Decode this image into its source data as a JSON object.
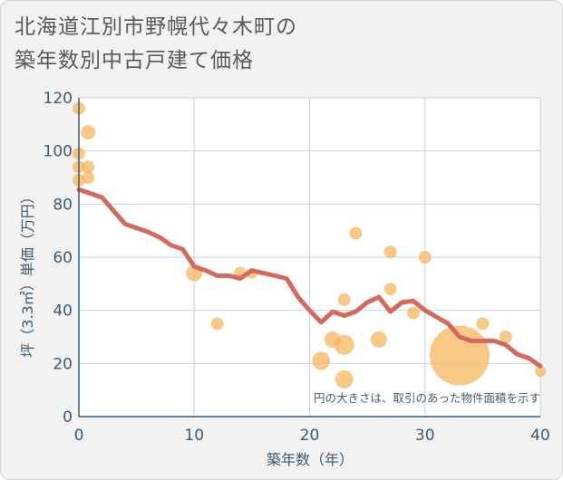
{
  "title_lines": [
    "北海道江別市野幌代々木町の",
    "築年数別中古戸建て価格"
  ],
  "chart_data": {
    "type": "scatter",
    "xlabel": "築年数（年）",
    "ylabel": "坪（3.3㎡）単価（万円）",
    "xlim": [
      0,
      40
    ],
    "ylim": [
      0,
      120
    ],
    "xticks": [
      0,
      10,
      20,
      30,
      40
    ],
    "yticks": [
      0,
      20,
      40,
      60,
      80,
      100,
      120
    ],
    "grid": true,
    "annotation": "円の大きさは、取引のあった物件面積を示す",
    "colors": {
      "bubble": "#f5b55f",
      "line": "#d36a5b",
      "grid": "#c5d2e0",
      "axis": "#3d5a72"
    },
    "bubbles": [
      {
        "x": 0,
        "y": 116,
        "r": 7
      },
      {
        "x": 0,
        "y": 99,
        "r": 7
      },
      {
        "x": 0,
        "y": 94,
        "r": 7
      },
      {
        "x": 0,
        "y": 89,
        "r": 7
      },
      {
        "x": 0.8,
        "y": 107,
        "r": 8
      },
      {
        "x": 0.8,
        "y": 94,
        "r": 7
      },
      {
        "x": 0.8,
        "y": 90,
        "r": 7
      },
      {
        "x": 10,
        "y": 54,
        "r": 9
      },
      {
        "x": 12,
        "y": 35,
        "r": 7
      },
      {
        "x": 14,
        "y": 54,
        "r": 7
      },
      {
        "x": 15,
        "y": 54,
        "r": 6
      },
      {
        "x": 21,
        "y": 21,
        "r": 10
      },
      {
        "x": 22,
        "y": 29,
        "r": 9
      },
      {
        "x": 23,
        "y": 44,
        "r": 7
      },
      {
        "x": 23,
        "y": 27,
        "r": 11
      },
      {
        "x": 23,
        "y": 14,
        "r": 10
      },
      {
        "x": 24,
        "y": 69,
        "r": 7
      },
      {
        "x": 26,
        "y": 29,
        "r": 9
      },
      {
        "x": 27,
        "y": 62,
        "r": 7
      },
      {
        "x": 27,
        "y": 48,
        "r": 7
      },
      {
        "x": 29,
        "y": 39,
        "r": 7
      },
      {
        "x": 30,
        "y": 60,
        "r": 7
      },
      {
        "x": 33,
        "y": 23,
        "r": 33
      },
      {
        "x": 35,
        "y": 35,
        "r": 7
      },
      {
        "x": 37,
        "y": 30,
        "r": 7
      },
      {
        "x": 40,
        "y": 17,
        "r": 6
      }
    ],
    "trend_line": {
      "x": [
        0,
        2,
        4,
        6,
        7,
        8,
        9,
        10,
        11,
        12,
        13,
        14,
        15,
        16,
        17,
        18,
        19,
        20,
        21,
        22,
        23,
        24,
        25,
        26,
        27,
        28,
        29,
        30,
        31,
        32,
        33,
        34,
        35,
        36,
        37,
        38,
        39,
        40
      ],
      "y": [
        85.5,
        82.5,
        72.5,
        69.5,
        67.5,
        64.5,
        63,
        56.5,
        55,
        53,
        53,
        52,
        55,
        54,
        53,
        52,
        45,
        40,
        35.5,
        39.5,
        38,
        39.5,
        43,
        45,
        39.5,
        43,
        43.5,
        40,
        37.5,
        35,
        30,
        28.5,
        28.5,
        28.5,
        27,
        23.5,
        22,
        19
      ]
    }
  }
}
